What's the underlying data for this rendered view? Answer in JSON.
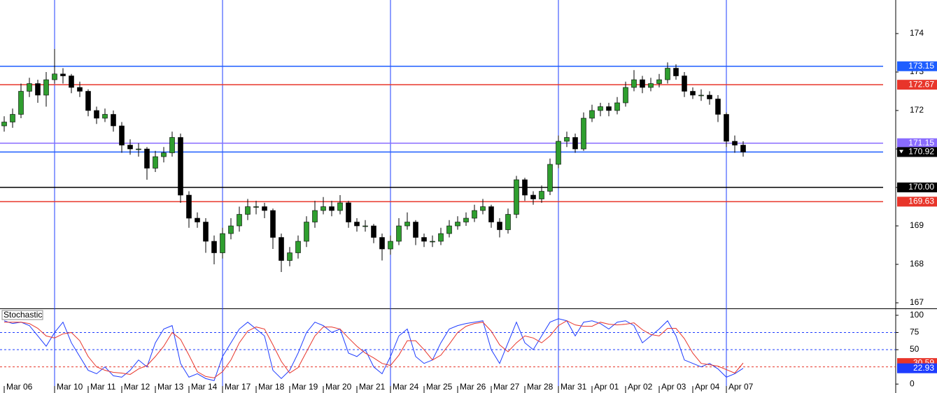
{
  "chart_data": {
    "type": "candlestick",
    "up_color": "#2f9e2f",
    "down_color": "#000000",
    "wick_color": "#000000",
    "separator_color": "#1e3cff",
    "last_price_line_color": "#1e5eff",
    "ylim": [
      166.855,
      174.873
    ],
    "yticks": [
      167,
      168,
      169,
      170,
      171,
      172,
      173,
      174
    ],
    "categories": [
      "Mar 06",
      null,
      null,
      null,
      null,
      null,
      "Mar 10",
      null,
      null,
      null,
      "Mar 11",
      null,
      null,
      null,
      "Mar 12",
      null,
      null,
      null,
      "Mar 13",
      null,
      null,
      null,
      "Mar 14",
      null,
      null,
      null,
      "Mar 17",
      null,
      null,
      null,
      "Mar 18",
      null,
      null,
      null,
      "Mar 19",
      null,
      null,
      null,
      "Mar 20",
      null,
      null,
      null,
      "Mar 21",
      null,
      null,
      null,
      "Mar 24",
      null,
      null,
      null,
      "Mar 25",
      null,
      null,
      null,
      "Mar 26",
      null,
      null,
      null,
      "Mar 27",
      null,
      null,
      null,
      "Mar 28",
      null,
      null,
      null,
      "Mar 31",
      null,
      null,
      null,
      "Apr 01",
      null,
      null,
      null,
      "Apr 02",
      null,
      null,
      null,
      "Apr 03",
      null,
      null,
      null,
      "Apr 04",
      null,
      null,
      null,
      "Apr 07",
      null,
      null
    ],
    "separators": [
      6,
      26,
      46,
      66,
      86
    ],
    "candles": [
      [
        171.6,
        171.85,
        171.45,
        171.7
      ],
      [
        171.7,
        172.05,
        171.55,
        171.9
      ],
      [
        171.9,
        172.7,
        171.8,
        172.5
      ],
      [
        172.5,
        172.85,
        172.35,
        172.7
      ],
      [
        172.7,
        172.8,
        172.2,
        172.4
      ],
      [
        172.4,
        173.0,
        172.1,
        172.8
      ],
      [
        172.8,
        173.6,
        172.7,
        172.95
      ],
      [
        172.95,
        173.1,
        172.7,
        172.9
      ],
      [
        172.9,
        172.95,
        172.45,
        172.6
      ],
      [
        172.6,
        172.75,
        172.35,
        172.5
      ],
      [
        172.5,
        172.55,
        171.85,
        172.0
      ],
      [
        172.0,
        172.1,
        171.65,
        171.8
      ],
      [
        171.8,
        172.05,
        171.7,
        171.9
      ],
      [
        171.9,
        172.0,
        171.45,
        171.6
      ],
      [
        171.6,
        171.7,
        170.9,
        171.1
      ],
      [
        171.1,
        171.25,
        170.85,
        171.0
      ],
      [
        171.0,
        171.15,
        170.8,
        171.0
      ],
      [
        171.0,
        171.05,
        170.2,
        170.5
      ],
      [
        170.5,
        170.95,
        170.4,
        170.8
      ],
      [
        170.8,
        171.05,
        170.65,
        170.9
      ],
      [
        170.9,
        171.45,
        170.8,
        171.3
      ],
      [
        171.3,
        171.4,
        169.6,
        169.8
      ],
      [
        169.8,
        169.9,
        168.95,
        169.2
      ],
      [
        169.2,
        169.35,
        168.95,
        169.1
      ],
      [
        169.1,
        169.2,
        168.3,
        168.6
      ],
      [
        168.6,
        168.75,
        168.0,
        168.3
      ],
      [
        168.3,
        168.95,
        168.15,
        168.8
      ],
      [
        168.8,
        169.2,
        168.65,
        169.0
      ],
      [
        169.0,
        169.5,
        168.85,
        169.3
      ],
      [
        169.3,
        169.7,
        169.15,
        169.5
      ],
      [
        169.5,
        169.65,
        169.3,
        169.5
      ],
      [
        169.5,
        169.6,
        169.2,
        169.4
      ],
      [
        169.4,
        169.45,
        168.4,
        168.7
      ],
      [
        168.7,
        168.8,
        167.8,
        168.1
      ],
      [
        168.1,
        168.45,
        167.95,
        168.3
      ],
      [
        168.3,
        168.75,
        168.15,
        168.6
      ],
      [
        168.6,
        169.25,
        168.45,
        169.1
      ],
      [
        169.1,
        169.65,
        168.95,
        169.4
      ],
      [
        169.4,
        169.75,
        169.3,
        169.5
      ],
      [
        169.5,
        169.65,
        169.25,
        169.4
      ],
      [
        169.4,
        169.8,
        169.3,
        169.6
      ],
      [
        169.6,
        169.65,
        168.95,
        169.1
      ],
      [
        169.1,
        169.2,
        168.85,
        169.0
      ],
      [
        169.0,
        169.15,
        168.85,
        169.0
      ],
      [
        169.0,
        169.05,
        168.55,
        168.7
      ],
      [
        168.7,
        168.8,
        168.1,
        168.4
      ],
      [
        168.4,
        168.75,
        168.25,
        168.6
      ],
      [
        168.6,
        169.2,
        168.5,
        169.0
      ],
      [
        169.0,
        169.35,
        168.9,
        169.1
      ],
      [
        169.1,
        169.15,
        168.5,
        168.7
      ],
      [
        168.7,
        168.8,
        168.45,
        168.6
      ],
      [
        168.6,
        168.75,
        168.45,
        168.6
      ],
      [
        168.6,
        168.95,
        168.5,
        168.8
      ],
      [
        168.8,
        169.15,
        168.7,
        169.0
      ],
      [
        169.0,
        169.25,
        168.9,
        169.1
      ],
      [
        169.1,
        169.35,
        169.0,
        169.2
      ],
      [
        169.2,
        169.55,
        169.1,
        169.4
      ],
      [
        169.4,
        169.7,
        169.3,
        169.5
      ],
      [
        169.5,
        169.55,
        168.95,
        169.1
      ],
      [
        169.1,
        169.2,
        168.7,
        168.9
      ],
      [
        168.9,
        169.45,
        168.8,
        169.3
      ],
      [
        169.3,
        170.3,
        169.2,
        170.2
      ],
      [
        170.2,
        170.25,
        169.65,
        169.8
      ],
      [
        169.8,
        169.9,
        169.55,
        169.7
      ],
      [
        169.7,
        170.05,
        169.6,
        169.9
      ],
      [
        169.9,
        170.75,
        169.8,
        170.6
      ],
      [
        170.6,
        171.35,
        170.5,
        171.2
      ],
      [
        171.2,
        171.45,
        171.05,
        171.3
      ],
      [
        171.3,
        171.4,
        170.9,
        171.0
      ],
      [
        171.0,
        171.95,
        170.95,
        171.8
      ],
      [
        171.8,
        172.15,
        171.7,
        172.0
      ],
      [
        172.0,
        172.2,
        171.85,
        172.1
      ],
      [
        172.1,
        172.2,
        171.85,
        172.0
      ],
      [
        172.0,
        172.35,
        171.9,
        172.2
      ],
      [
        172.2,
        172.75,
        172.1,
        172.6
      ],
      [
        172.6,
        173.05,
        172.5,
        172.8
      ],
      [
        172.8,
        172.9,
        172.45,
        172.6
      ],
      [
        172.6,
        172.85,
        172.5,
        172.7
      ],
      [
        172.7,
        172.95,
        172.6,
        172.8
      ],
      [
        172.8,
        173.25,
        172.7,
        173.1
      ],
      [
        173.1,
        173.2,
        172.8,
        172.9
      ],
      [
        172.9,
        173.0,
        172.35,
        172.5
      ],
      [
        172.5,
        172.6,
        172.3,
        172.4
      ],
      [
        172.4,
        172.55,
        172.25,
        172.4
      ],
      [
        172.4,
        172.5,
        172.15,
        172.3
      ],
      [
        172.3,
        172.4,
        171.7,
        171.9
      ],
      [
        171.9,
        171.95,
        171.05,
        171.2
      ],
      [
        171.2,
        171.35,
        170.9,
        171.1
      ],
      [
        171.1,
        171.2,
        170.8,
        170.92
      ]
    ],
    "levels": [
      {
        "value": 173.15,
        "color": "#1e5eff"
      },
      {
        "value": 172.67,
        "color": "#e8352a"
      },
      {
        "value": 171.15,
        "color": "#8a6cff"
      },
      {
        "value": 170,
        "label": "170.00",
        "color": "#000000"
      },
      {
        "value": 169.63,
        "color": "#e8352a"
      }
    ],
    "stochastic": {
      "title": "Stochastic",
      "ylim": [
        -13,
        108
      ],
      "yticks": [
        0,
        50,
        75,
        100
      ],
      "levels": [
        {
          "value": 75,
          "color": "#1e3cff"
        },
        {
          "value": 50,
          "color": "#1e3cff"
        },
        {
          "value": 25,
          "color": "#e8352a"
        }
      ],
      "main": {
        "color": "#1e3cff",
        "values": [
          92,
          88,
          90,
          85,
          70,
          55,
          75,
          90,
          60,
          40,
          20,
          15,
          25,
          12,
          10,
          20,
          35,
          25,
          60,
          80,
          85,
          30,
          10,
          15,
          8,
          5,
          40,
          60,
          80,
          90,
          80,
          70,
          20,
          8,
          20,
          45,
          75,
          90,
          85,
          75,
          80,
          45,
          40,
          50,
          25,
          15,
          40,
          70,
          80,
          40,
          30,
          35,
          60,
          80,
          85,
          88,
          90,
          92,
          50,
          30,
          60,
          90,
          60,
          50,
          70,
          90,
          95,
          92,
          70,
          90,
          92,
          88,
          80,
          90,
          92,
          85,
          60,
          70,
          80,
          92,
          70,
          35,
          30,
          25,
          30,
          22,
          10,
          15,
          22.93
        ]
      },
      "signal": {
        "color": "#e8352a",
        "values": [
          90,
          90,
          90,
          88,
          81,
          70,
          67,
          73,
          75,
          63,
          40,
          25,
          20,
          17,
          16,
          14,
          22,
          27,
          40,
          55,
          75,
          65,
          42,
          18,
          11,
          9,
          18,
          35,
          60,
          77,
          83,
          80,
          57,
          33,
          16,
          24,
          47,
          70,
          83,
          83,
          80,
          67,
          55,
          45,
          38,
          30,
          27,
          42,
          63,
          63,
          50,
          35,
          42,
          58,
          75,
          84,
          88,
          90,
          77,
          57,
          47,
          60,
          70,
          67,
          60,
          70,
          85,
          92,
          86,
          84,
          84,
          90,
          87,
          86,
          87,
          89,
          79,
          72,
          70,
          81,
          81,
          66,
          45,
          30,
          28,
          26,
          21,
          16,
          30.59
        ]
      }
    }
  }
}
